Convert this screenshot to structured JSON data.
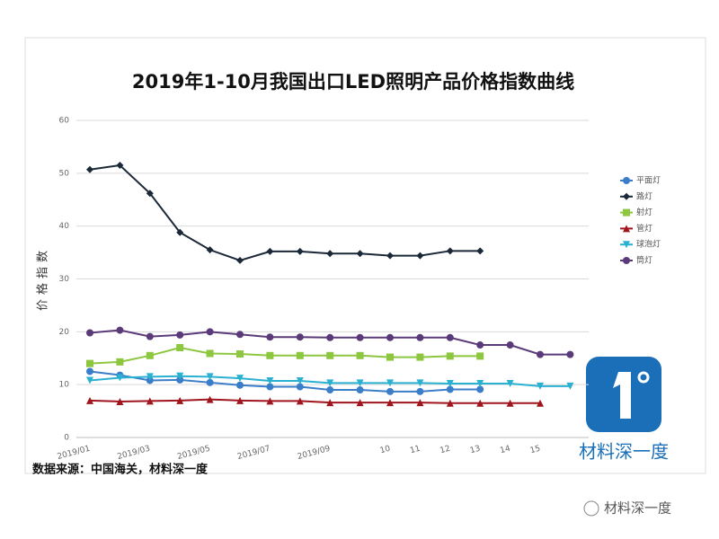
{
  "chart_data": {
    "type": "line",
    "title": "2019年1-10月我国出口LED照明产品价格指数曲线",
    "y_label": "价格指数",
    "categories": [
      "2019/01",
      null,
      "2019/03",
      null,
      "2019/05",
      null,
      "2019/07",
      null,
      "2019/09",
      null,
      "10",
      "11",
      "12",
      "13",
      "14",
      "15",
      null
    ],
    "ylim": [
      0,
      60
    ],
    "yticks": [
      0,
      10,
      20,
      30,
      40,
      50,
      60
    ],
    "grid": true,
    "series": [
      {
        "name": "平面灯",
        "color": "#3a7dc9",
        "marker": "circle",
        "values": [
          12.5,
          11.8,
          10.8,
          10.9,
          10.4,
          9.9,
          9.6,
          9.6,
          9.0,
          9.0,
          8.7,
          8.7,
          9.1,
          9.1,
          null,
          null,
          null
        ]
      },
      {
        "name": "路灯",
        "color": "#1a2838",
        "marker": "diamond",
        "values": [
          50.7,
          51.5,
          46.2,
          38.8,
          35.5,
          33.5,
          35.2,
          35.2,
          34.8,
          34.8,
          34.4,
          34.4,
          35.3,
          35.3,
          null,
          null,
          null
        ]
      },
      {
        "name": "射灯",
        "color": "#8dc63f",
        "marker": "square",
        "values": [
          14.0,
          14.3,
          15.5,
          17.0,
          15.9,
          15.8,
          15.5,
          15.5,
          15.5,
          15.5,
          15.2,
          15.2,
          15.4,
          15.4,
          null,
          null,
          null
        ]
      },
      {
        "name": "管灯",
        "color": "#a0151e",
        "marker": "triangle",
        "values": [
          7.0,
          6.8,
          6.9,
          7.0,
          7.2,
          7.0,
          6.9,
          6.9,
          6.6,
          6.6,
          6.6,
          6.6,
          6.5,
          6.5,
          6.5,
          6.5,
          null
        ]
      },
      {
        "name": "球泡灯",
        "color": "#2ab0d0",
        "marker": "triangle-down",
        "values": [
          10.8,
          11.3,
          11.5,
          11.6,
          11.5,
          11.2,
          10.7,
          10.7,
          10.3,
          10.3,
          10.3,
          10.3,
          10.2,
          10.2,
          10.2,
          9.7,
          9.7
        ]
      },
      {
        "name": "筒灯",
        "color": "#5b3a7a",
        "marker": "circle",
        "values": [
          19.8,
          20.3,
          19.1,
          19.4,
          20.0,
          19.5,
          19.0,
          19.0,
          18.9,
          18.9,
          18.9,
          18.9,
          18.9,
          17.5,
          17.5,
          15.7,
          15.7
        ]
      }
    ]
  },
  "source": "数据来源：中国海关，材料深一度",
  "logo_text": "材料深一度",
  "footer_text": "材料深一度"
}
